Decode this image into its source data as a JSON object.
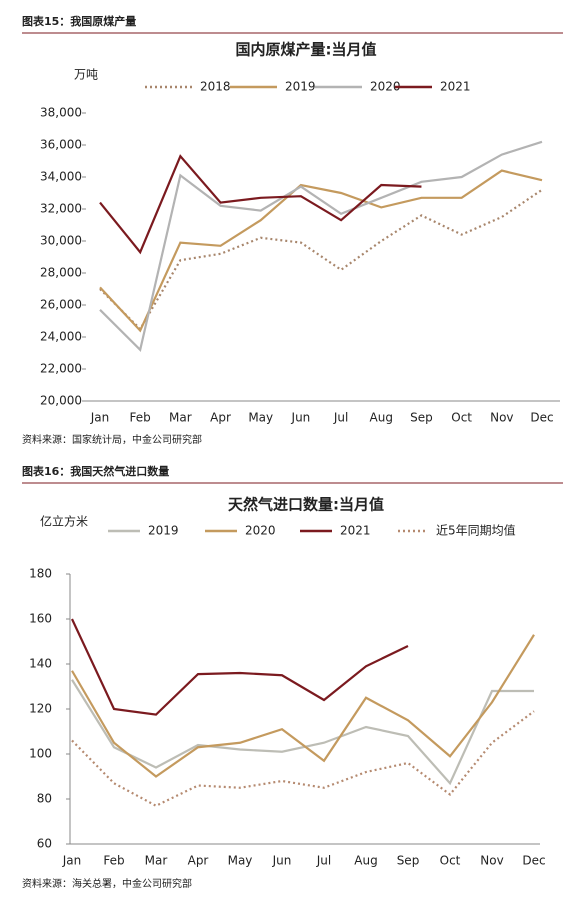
{
  "chart_data": [
    {
      "type": "line",
      "caption": "图表15：我国原煤产量",
      "title": "国内原煤产量:当月值",
      "unit": "万吨",
      "source": "资料来源：国家统计局，中金公司研究部",
      "categories": [
        "Jan",
        "Feb",
        "Mar",
        "Apr",
        "May",
        "Jun",
        "Jul",
        "Aug",
        "Sep",
        "Oct",
        "Nov",
        "Dec"
      ],
      "ylim": [
        20000,
        38000
      ],
      "yticks": [
        {
          "value": 20000,
          "label": "20,000"
        },
        {
          "value": 22000,
          "label": "22,000"
        },
        {
          "value": 24000,
          "label": "24,000"
        },
        {
          "value": 26000,
          "label": "26,000"
        },
        {
          "value": 28000,
          "label": "28,000"
        },
        {
          "value": 30000,
          "label": "30,000"
        },
        {
          "value": 32000,
          "label": "32,000"
        },
        {
          "value": 34000,
          "label": "34,000"
        },
        {
          "value": 36000,
          "label": "36,000"
        },
        {
          "value": 38000,
          "label": "38,000"
        }
      ],
      "series": [
        {
          "name": "2018",
          "color": "#a8866c",
          "style": "dotted",
          "values": [
            27000,
            24500,
            28800,
            29200,
            30200,
            29900,
            28200,
            30000,
            31600,
            30400,
            31500,
            33200
          ]
        },
        {
          "name": "2019",
          "color": "#c49a5e",
          "style": "solid",
          "values": [
            27100,
            24400,
            29900,
            29700,
            31300,
            33500,
            33000,
            32100,
            32700,
            32700,
            34400,
            33800
          ]
        },
        {
          "name": "2020",
          "color": "#b3b3b3",
          "style": "solid",
          "values": [
            25700,
            23200,
            34100,
            32200,
            31900,
            33400,
            31700,
            32700,
            33700,
            34000,
            35400,
            36200
          ]
        },
        {
          "name": "2021",
          "color": "#7b1a1f",
          "style": "solid",
          "values": [
            32400,
            29300,
            35300,
            32400,
            32700,
            32800,
            31300,
            33500,
            33400,
            null,
            null,
            null
          ]
        }
      ]
    },
    {
      "type": "line",
      "caption": "图表16：我国天然气进口数量",
      "title": "天然气进口数量:当月值",
      "unit": "亿立方米",
      "source": "资料来源：海关总署，中金公司研究部",
      "categories": [
        "Jan",
        "Feb",
        "Mar",
        "Apr",
        "May",
        "Jun",
        "Jul",
        "Aug",
        "Sep",
        "Oct",
        "Nov",
        "Dec"
      ],
      "ylim": [
        60,
        180
      ],
      "yticks": [
        60,
        80,
        100,
        120,
        140,
        160,
        180
      ],
      "series": [
        {
          "name": "2019",
          "color": "#bdbdb5",
          "style": "solid",
          "values": [
            133,
            103,
            94,
            104,
            102,
            101,
            105,
            112,
            108,
            87,
            128,
            128
          ]
        },
        {
          "name": "2020",
          "color": "#c49a5e",
          "style": "solid",
          "values": [
            137,
            105,
            90,
            103,
            105,
            111,
            97,
            125,
            115,
            99,
            123,
            153
          ]
        },
        {
          "name": "2021",
          "color": "#7b1a1f",
          "style": "solid",
          "values": [
            160,
            120,
            117.5,
            135.5,
            136,
            135,
            124,
            139,
            148,
            null,
            null,
            null
          ]
        },
        {
          "name": "近5年同期均值",
          "color": "#b58a70",
          "style": "dotted",
          "values": [
            106,
            87,
            77,
            86,
            85,
            88,
            85,
            92,
            96,
            82,
            105,
            119
          ]
        }
      ]
    }
  ]
}
